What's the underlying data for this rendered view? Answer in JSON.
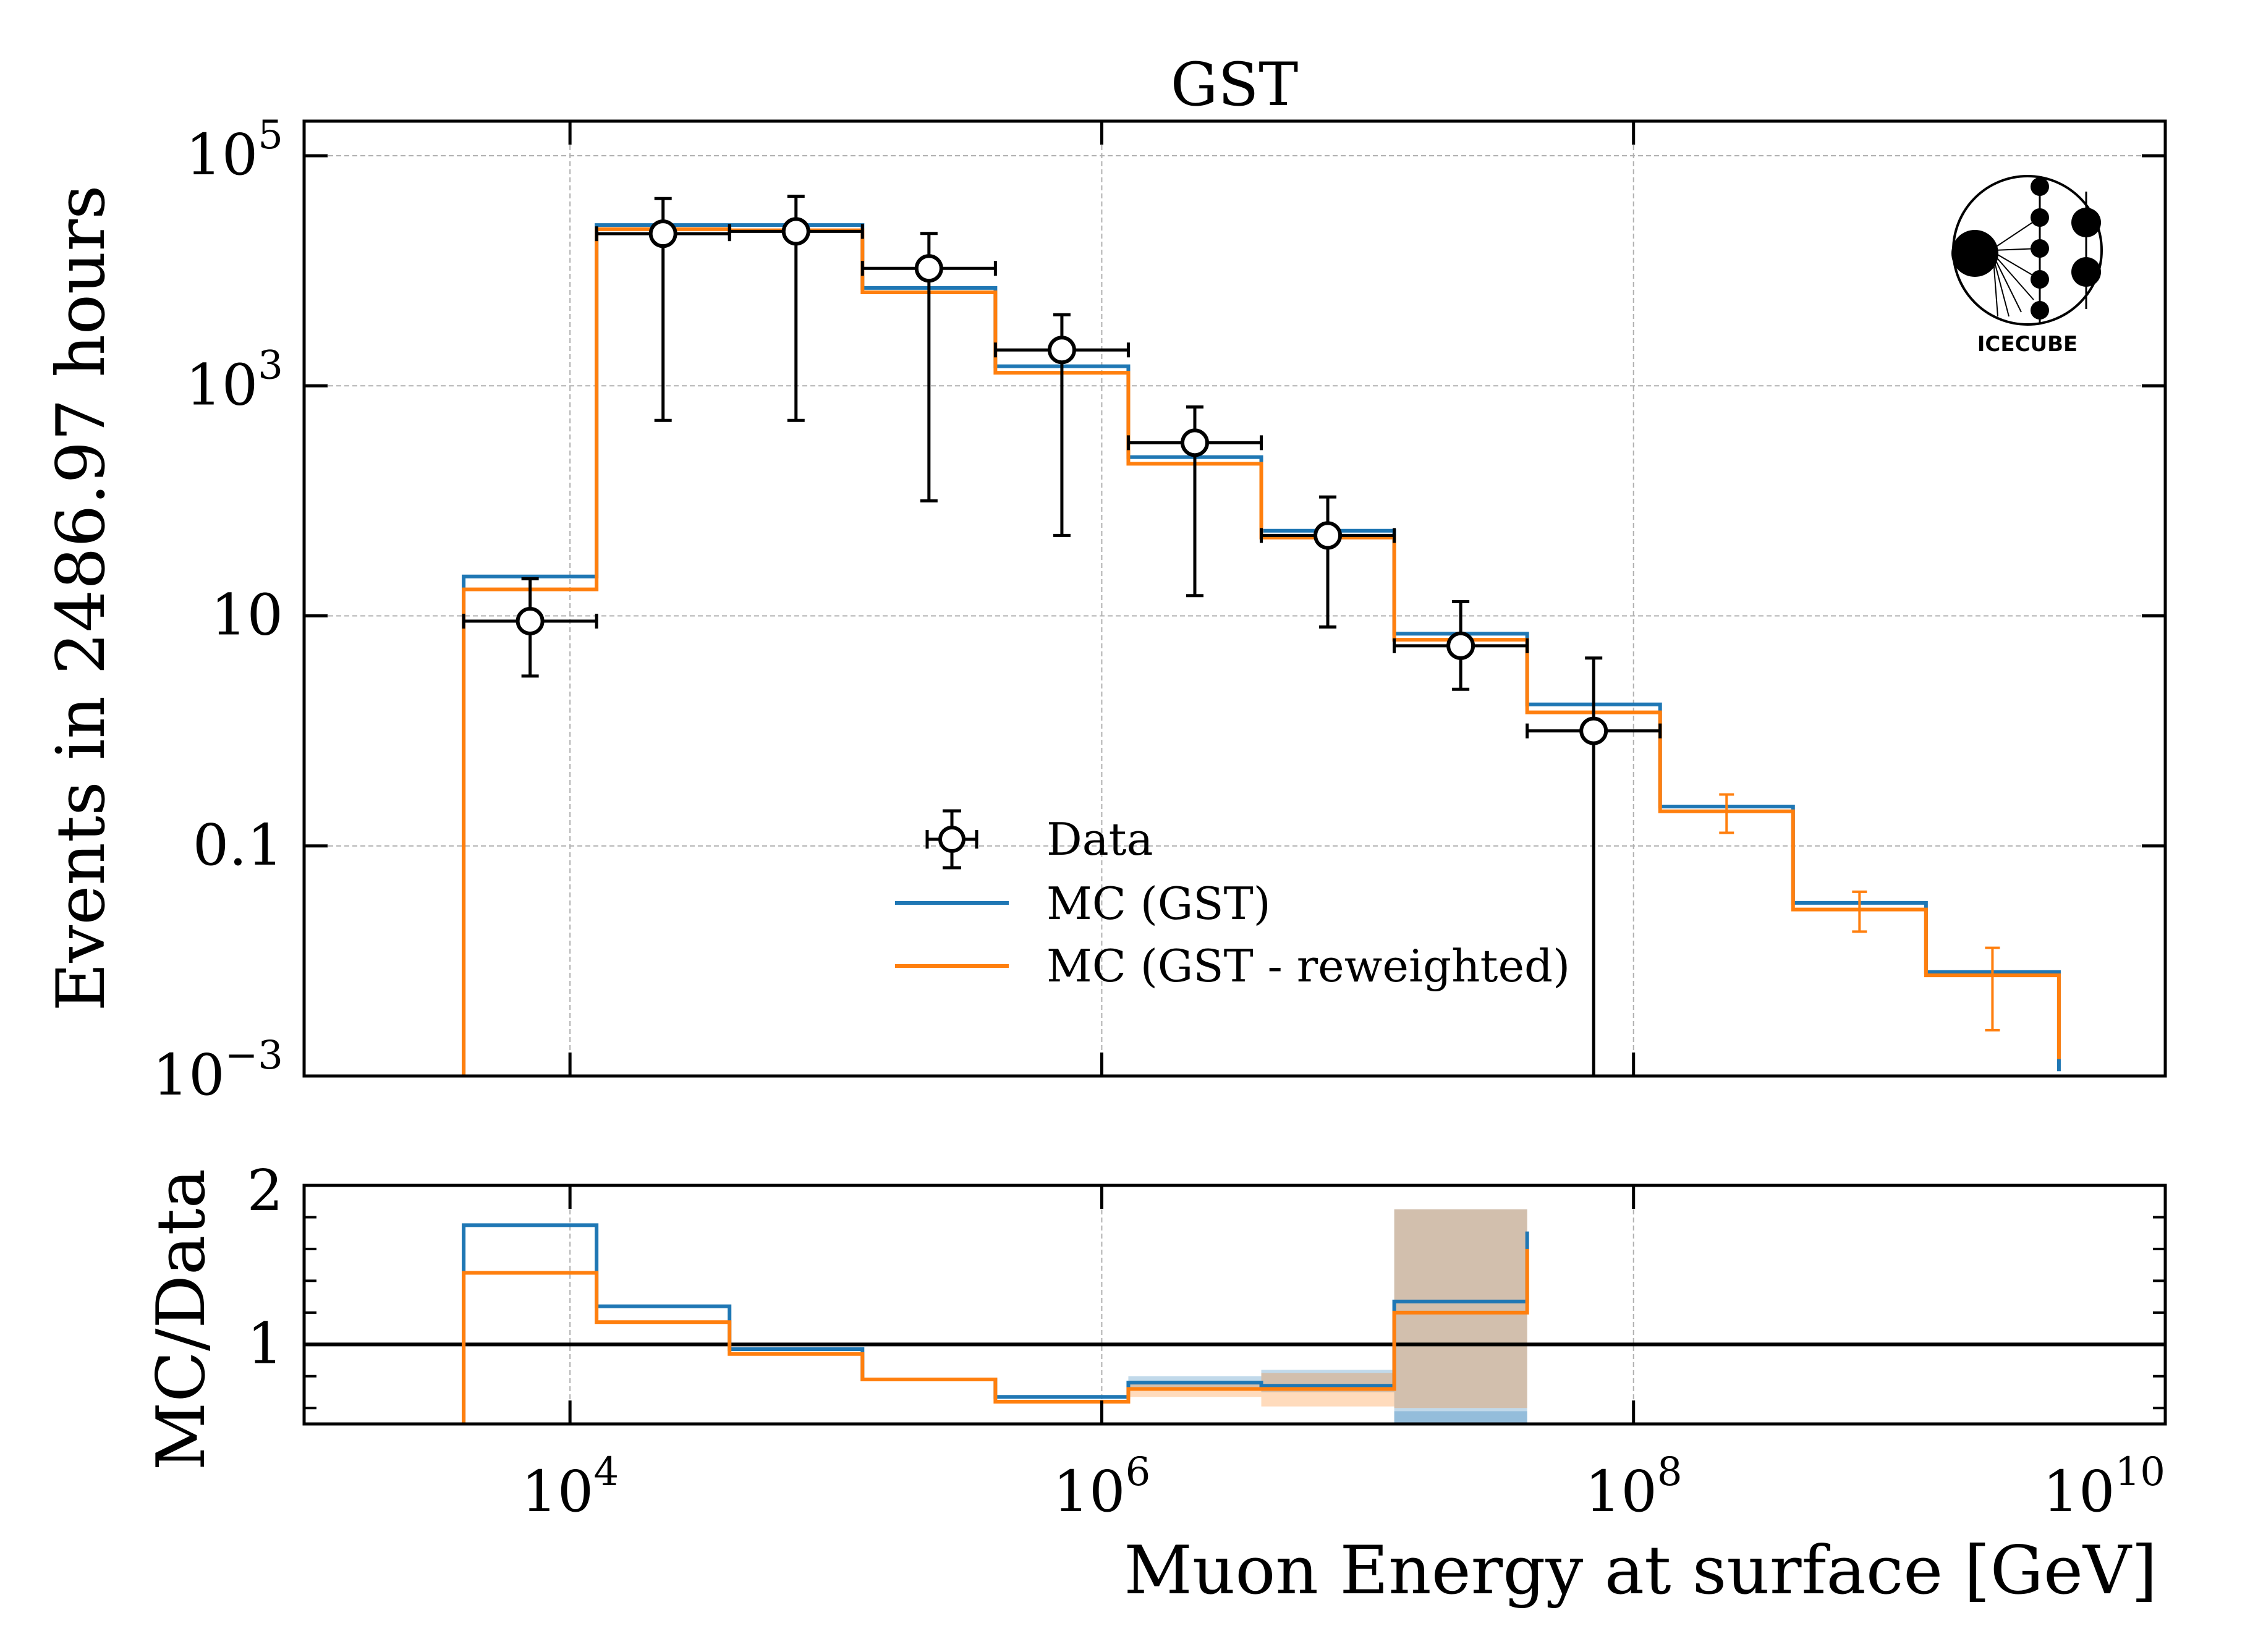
{
  "chart_data": [
    {
      "type": "step-histogram",
      "title": "GST",
      "ylabel": "Events in 2486.97 hours",
      "xlabel": "Muon Energy at surface [GeV]",
      "xscale": "log",
      "yscale": "log",
      "xlim": [
        1000,
        10000000000
      ],
      "ylim": [
        0.001,
        200000
      ],
      "x_ticks": [
        {
          "value": 10000,
          "base": "10",
          "exp": "4"
        },
        {
          "value": 1000000,
          "base": "10",
          "exp": "6"
        },
        {
          "value": 100000000,
          "base": "10",
          "exp": "8"
        },
        {
          "value": 10000000000,
          "base": "10",
          "exp": "10"
        }
      ],
      "y_ticks": [
        {
          "value": 0.001,
          "base": "10",
          "exp": "−3"
        },
        {
          "value": 0.1,
          "label": "0.1"
        },
        {
          "value": 10,
          "label": "10"
        },
        {
          "value": 1000,
          "base": "10",
          "exp": "3"
        },
        {
          "value": 100000,
          "base": "10",
          "exp": "5"
        }
      ],
      "grid": true,
      "legend_position": "lower-center",
      "bin_edges": [
        3981,
        12589,
        39811,
        125893,
        398107,
        1258925,
        3981072,
        12589254,
        39810717,
        125892541,
        398107171,
        1258925412,
        3981071706
      ],
      "series": [
        {
          "name": "Data",
          "style": "points",
          "x": [
            7079,
            22387,
            70795,
            223872,
            707946,
            2238721,
            7079458,
            22387211,
            70794578
          ],
          "values": [
            9,
            21000,
            22000,
            10500,
            2050,
            320,
            50,
            5.5,
            1
          ],
          "yerr_low": [
            6,
            20500,
            21500,
            10400,
            2000,
            305,
            42,
            3.2,
            0.999
          ],
          "yerr_high": [
            12,
            21500,
            22500,
            10600,
            2100,
            335,
            58,
            7.8,
            3.3
          ],
          "color": "#000000"
        },
        {
          "name": "MC (GST)",
          "style": "step",
          "values": [
            22,
            25000,
            25000,
            7100,
            1480,
            240,
            55,
            7,
            1.7,
            0.22,
            0.032,
            0.008,
            0.0011
          ],
          "color": "#1f77b4"
        },
        {
          "name": "MC (GST - reweighted)",
          "style": "step",
          "values": [
            17,
            23000,
            22500,
            6500,
            1300,
            210,
            48,
            6.2,
            1.45,
            0.2,
            0.028,
            0.0075,
            0.0014
          ],
          "yerr_low": [
            null,
            null,
            null,
            null,
            null,
            null,
            null,
            null,
            null,
            0.13,
            0.018,
            0.0025,
            0.0009
          ],
          "yerr_high": [
            null,
            null,
            null,
            null,
            null,
            null,
            null,
            null,
            null,
            0.28,
            0.04,
            0.013,
            0.0023
          ],
          "color": "#ff7f0e"
        }
      ],
      "logo": "IceCube",
      "logo_text": "ICECUBE"
    },
    {
      "type": "step-ratio",
      "ylabel": "MC/Data",
      "xlabel": "Muon Energy at surface [GeV]",
      "xscale": "log",
      "xlim": [
        1000,
        10000000000
      ],
      "ylim": [
        0.5,
        2
      ],
      "y_ticks": [
        {
          "value": 1,
          "label": "1"
        },
        {
          "value": 2,
          "label": "2"
        }
      ],
      "reference_line": 1,
      "bin_edges": [
        3981,
        12589,
        39811,
        125893,
        398107,
        1258925,
        3981072,
        12589254,
        39810717
      ],
      "series": [
        {
          "name": "MC (GST)",
          "values": [
            1.75,
            1.24,
            0.97,
            0.78,
            0.67,
            0.76,
            0.74,
            1.27,
            1.71
          ],
          "band_low": [
            null,
            null,
            null,
            null,
            null,
            0.72,
            0.7,
            0.5,
            0.5
          ],
          "band_high": [
            null,
            null,
            null,
            null,
            null,
            0.8,
            0.84,
            1.85,
            2
          ],
          "color": "#1f77b4"
        },
        {
          "name": "MC (GST - reweighted)",
          "values": [
            1.45,
            1.14,
            0.94,
            0.78,
            0.64,
            0.72,
            0.72,
            1.2,
            1.6
          ],
          "band_low": [
            null,
            null,
            null,
            null,
            null,
            0.67,
            0.61,
            0.6,
            0.5
          ],
          "band_high": [
            null,
            null,
            null,
            null,
            null,
            0.76,
            0.82,
            1.85,
            2
          ],
          "color": "#ff7f0e"
        }
      ],
      "extra_band": {
        "x0": 12589254,
        "x1": 39810717,
        "low": 0.5,
        "high": 0.58,
        "color": "#1f77b4"
      }
    }
  ]
}
